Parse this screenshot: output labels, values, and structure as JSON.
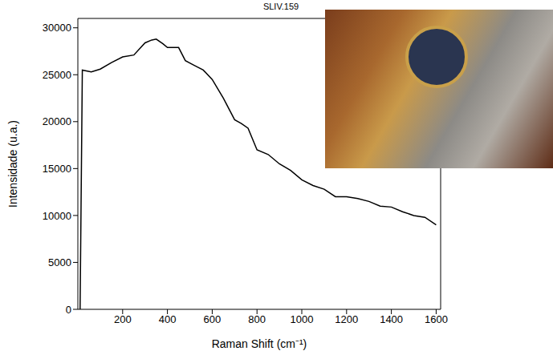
{
  "chart_data": {
    "type": "line",
    "title": "SLIV.159",
    "x_label": "Raman Shift (cm⁻¹)",
    "y_label": "Intensidade (u.a.)",
    "x": [
      10,
      20,
      60,
      100,
      150,
      200,
      250,
      300,
      330,
      350,
      380,
      400,
      450,
      480,
      520,
      560,
      600,
      650,
      700,
      730,
      760,
      800,
      850,
      900,
      950,
      1000,
      1050,
      1100,
      1150,
      1200,
      1250,
      1300,
      1350,
      1400,
      1450,
      1500,
      1550,
      1600
    ],
    "series": [
      {
        "name": "SLIV.159",
        "color": "#000000",
        "values": [
          0,
          25500,
          25300,
          25600,
          26300,
          26900,
          27100,
          28400,
          28700,
          28800,
          28300,
          27900,
          27900,
          26500,
          26000,
          25500,
          24500,
          22500,
          20200,
          19800,
          19300,
          17000,
          16500,
          15500,
          14800,
          13800,
          13200,
          12800,
          12000,
          12000,
          11800,
          11500,
          11000,
          10900,
          10400,
          10000,
          9800,
          9000
        ]
      }
    ],
    "xlim": [
      0,
      1620
    ],
    "xticks": [
      200,
      400,
      600,
      800,
      1000,
      1200,
      1400,
      1600
    ],
    "ylim": [
      0,
      31000
    ],
    "yticks": [
      0,
      5000,
      10000,
      15000,
      20000,
      25000,
      30000
    ],
    "grid": false
  }
}
